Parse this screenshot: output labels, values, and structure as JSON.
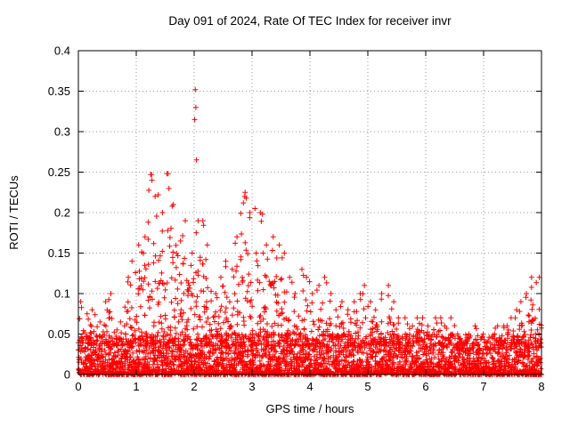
{
  "figure": {
    "background": "#ffffff",
    "border_color": "#000000",
    "grid_color": "#9a9a9a"
  },
  "chart_data": {
    "type": "scatter",
    "title": "Day 091 of 2024, Rate Of TEC Index for receiver invr",
    "xlabel": "GPS time / hours",
    "ylabel": "ROTI / TECUs",
    "xlim": [
      0,
      8
    ],
    "ylim": [
      0,
      0.4
    ],
    "xticks": [
      0,
      1,
      2,
      3,
      4,
      5,
      6,
      7,
      8
    ],
    "xtick_labels": [
      "0",
      "1",
      "2",
      "3",
      "4",
      "5",
      "6",
      "7",
      "8"
    ],
    "yticks": [
      0,
      0.05,
      0.1,
      0.15,
      0.2,
      0.25,
      0.3,
      0.35,
      0.4
    ],
    "ytick_labels": [
      "0",
      "0.05",
      "0.1",
      "0.15",
      "0.2",
      "0.25",
      "0.3",
      "0.35",
      "0.4"
    ],
    "grid": "dotted",
    "legend_position": "none",
    "marker": "plus",
    "marker_color": "#ff0000",
    "series": [
      {
        "name": "ROTI receiver invr day 091 2024",
        "bin_width_hours": 0.1,
        "baseline_band_max": 0.05,
        "max_envelope": [
          0.09,
          0.075,
          0.08,
          0.065,
          0.09,
          0.1,
          0.055,
          0.065,
          0.12,
          0.14,
          0.16,
          0.17,
          0.247,
          0.22,
          0.2,
          0.248,
          0.21,
          0.165,
          0.19,
          0.15,
          0.19,
          0.19,
          0.16,
          0.1,
          0.12,
          0.14,
          0.13,
          0.17,
          0.22,
          0.2,
          0.15,
          0.2,
          0.16,
          0.17,
          0.16,
          0.15,
          0.12,
          0.1,
          0.13,
          0.12,
          0.1,
          0.11,
          0.12,
          0.1,
          0.08,
          0.09,
          0.08,
          0.09,
          0.1,
          0.11,
          0.09,
          0.08,
          0.1,
          0.11,
          0.09,
          0.07,
          0.07,
          0.06,
          0.07,
          0.07,
          0.06,
          0.07,
          0.07,
          0.06,
          0.07,
          0.05,
          0.04,
          0.05,
          0.06,
          0.05,
          0.04,
          0.05,
          0.06,
          0.06,
          0.07,
          0.08,
          0.09,
          0.1,
          0.12,
          0.12
        ],
        "outlier_points": [
          [
            2.02,
            0.352
          ],
          [
            2.03,
            0.33
          ],
          [
            2.01,
            0.315
          ],
          [
            2.04,
            0.265
          ],
          [
            1.25,
            0.247
          ],
          [
            1.27,
            0.24
          ],
          [
            1.55,
            0.248
          ],
          [
            2.88,
            0.225
          ],
          [
            2.9,
            0.218
          ],
          [
            2.85,
            0.212
          ],
          [
            1.38,
            0.222
          ],
          [
            1.62,
            0.208
          ],
          [
            3.05,
            0.205
          ],
          [
            3.18,
            0.198
          ]
        ]
      }
    ]
  }
}
